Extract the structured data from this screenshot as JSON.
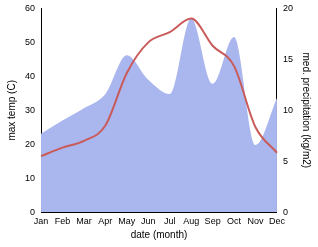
{
  "chart_data": {
    "type": "line",
    "xlabel": "date (month)",
    "ylabel": "max temp (C)",
    "y2label": "med. precipitation (kg/m2)",
    "categories": [
      "Jan",
      "Feb",
      "Mar",
      "Apr",
      "May",
      "Jun",
      "Jul",
      "Aug",
      "Sep",
      "Oct",
      "Nov",
      "Dec"
    ],
    "series": [
      {
        "type": "area",
        "axis": "y2",
        "color": "#aab6ee",
        "values": [
          7.7,
          9.0,
          10.2,
          11.6,
          15.4,
          13.0,
          11.6,
          19.0,
          12.6,
          17.2,
          6.6,
          11.2
        ]
      },
      {
        "type": "line",
        "color": "#c95b5b",
        "values": [
          16.5,
          19.0,
          21.0,
          25.5,
          41.0,
          50.0,
          53.0,
          57.0,
          49.0,
          43.0,
          25.0,
          17.5
        ]
      }
    ],
    "ylim": [
      0,
      60
    ],
    "yticks": [
      0,
      10,
      20,
      30,
      40,
      50,
      60
    ],
    "y2lim": [
      0,
      20
    ],
    "y2ticks": [
      0,
      5,
      10,
      15,
      20
    ],
    "grid": false
  }
}
